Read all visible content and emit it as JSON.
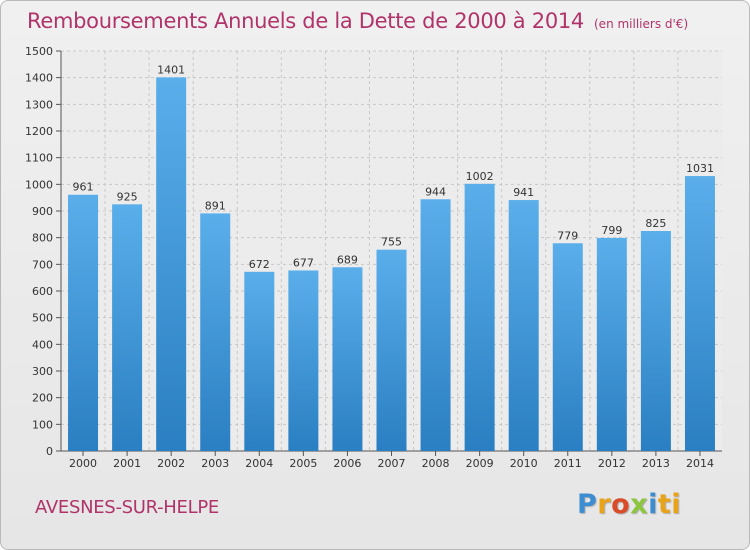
{
  "title": "Remboursements Annuels de la Dette de 2000 à 2014",
  "unit_note": "(en milliers d'€)",
  "location": "AVESNES-SUR-HELPE",
  "logo_text": "Proxiti",
  "colors": {
    "title": "#b0336a",
    "bar_top": "#5aaeea",
    "bar_bottom": "#2a7fc2",
    "axis": "#555555",
    "grid": "#c8c8c8"
  },
  "chart_data": {
    "type": "bar",
    "title": "Remboursements Annuels de la Dette de 2000 à 2014",
    "xlabel": "",
    "ylabel": "",
    "categories": [
      "2000",
      "2001",
      "2002",
      "2003",
      "2004",
      "2005",
      "2006",
      "2007",
      "2008",
      "2009",
      "2010",
      "2011",
      "2012",
      "2013",
      "2014"
    ],
    "values": [
      961,
      925,
      1401,
      891,
      672,
      677,
      689,
      755,
      944,
      1002,
      941,
      779,
      799,
      825,
      1031
    ],
    "ylim": [
      0,
      1500
    ],
    "yticks": [
      0,
      100,
      200,
      300,
      400,
      500,
      600,
      700,
      800,
      900,
      1000,
      1100,
      1200,
      1300,
      1400,
      1500
    ],
    "grid": true
  }
}
